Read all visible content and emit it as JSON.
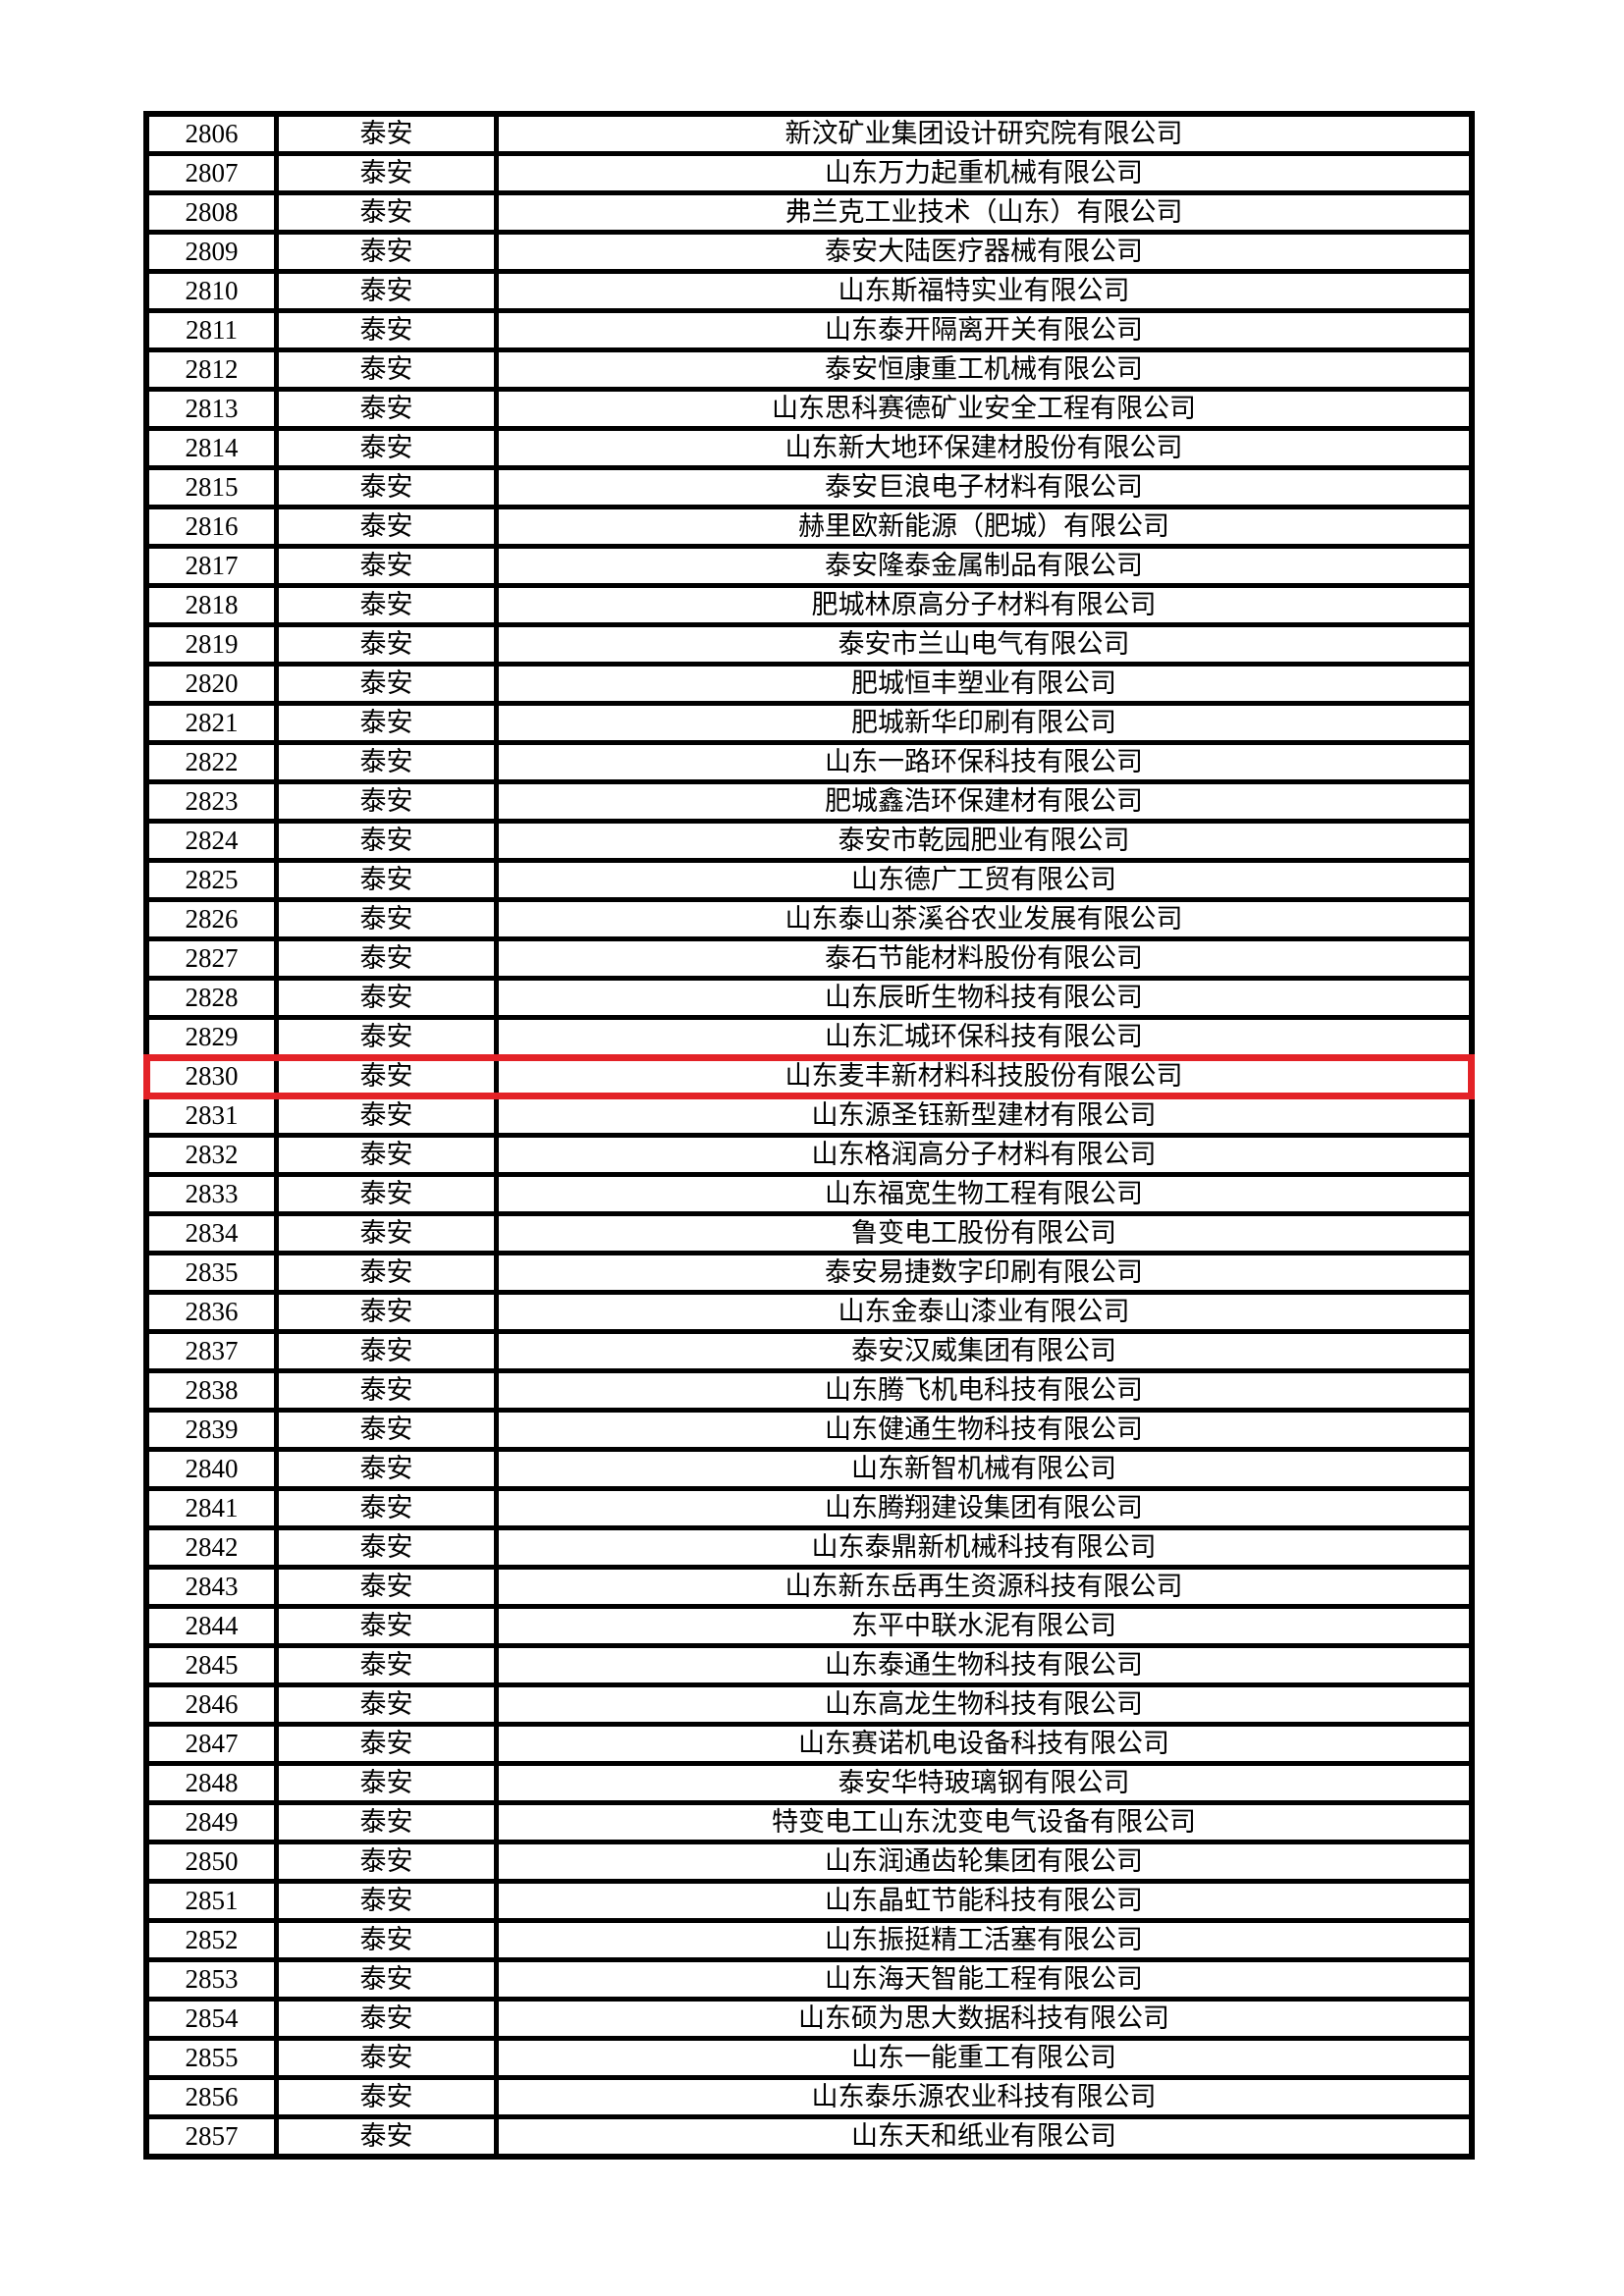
{
  "page": {
    "background_color": "#ffffff",
    "text_color": "#000000",
    "border_color": "#000000"
  },
  "table": {
    "highlight_color": "#e32227",
    "highlighted_row_number": "2830",
    "rows": [
      {
        "no": "2806",
        "city": "泰安",
        "company": "新汶矿业集团设计研究院有限公司"
      },
      {
        "no": "2807",
        "city": "泰安",
        "company": "山东万力起重机械有限公司"
      },
      {
        "no": "2808",
        "city": "泰安",
        "company": "弗兰克工业技术（山东）有限公司"
      },
      {
        "no": "2809",
        "city": "泰安",
        "company": "泰安大陆医疗器械有限公司"
      },
      {
        "no": "2810",
        "city": "泰安",
        "company": "山东斯福特实业有限公司"
      },
      {
        "no": "2811",
        "city": "泰安",
        "company": "山东泰开隔离开关有限公司"
      },
      {
        "no": "2812",
        "city": "泰安",
        "company": "泰安恒康重工机械有限公司"
      },
      {
        "no": "2813",
        "city": "泰安",
        "company": "山东思科赛德矿业安全工程有限公司"
      },
      {
        "no": "2814",
        "city": "泰安",
        "company": "山东新大地环保建材股份有限公司"
      },
      {
        "no": "2815",
        "city": "泰安",
        "company": "泰安巨浪电子材料有限公司"
      },
      {
        "no": "2816",
        "city": "泰安",
        "company": "赫里欧新能源（肥城）有限公司"
      },
      {
        "no": "2817",
        "city": "泰安",
        "company": "泰安隆泰金属制品有限公司"
      },
      {
        "no": "2818",
        "city": "泰安",
        "company": "肥城林原高分子材料有限公司"
      },
      {
        "no": "2819",
        "city": "泰安",
        "company": "泰安市兰山电气有限公司"
      },
      {
        "no": "2820",
        "city": "泰安",
        "company": "肥城恒丰塑业有限公司"
      },
      {
        "no": "2821",
        "city": "泰安",
        "company": "肥城新华印刷有限公司"
      },
      {
        "no": "2822",
        "city": "泰安",
        "company": "山东一路环保科技有限公司"
      },
      {
        "no": "2823",
        "city": "泰安",
        "company": "肥城鑫浩环保建材有限公司"
      },
      {
        "no": "2824",
        "city": "泰安",
        "company": "泰安市乾园肥业有限公司"
      },
      {
        "no": "2825",
        "city": "泰安",
        "company": "山东德广工贸有限公司"
      },
      {
        "no": "2826",
        "city": "泰安",
        "company": "山东泰山茶溪谷农业发展有限公司"
      },
      {
        "no": "2827",
        "city": "泰安",
        "company": "泰石节能材料股份有限公司"
      },
      {
        "no": "2828",
        "city": "泰安",
        "company": "山东辰昕生物科技有限公司"
      },
      {
        "no": "2829",
        "city": "泰安",
        "company": "山东汇城环保科技有限公司"
      },
      {
        "no": "2830",
        "city": "泰安",
        "company": "山东麦丰新材料科技股份有限公司"
      },
      {
        "no": "2831",
        "city": "泰安",
        "company": "山东源圣钰新型建材有限公司"
      },
      {
        "no": "2832",
        "city": "泰安",
        "company": "山东格润高分子材料有限公司"
      },
      {
        "no": "2833",
        "city": "泰安",
        "company": "山东福宽生物工程有限公司"
      },
      {
        "no": "2834",
        "city": "泰安",
        "company": "鲁变电工股份有限公司"
      },
      {
        "no": "2835",
        "city": "泰安",
        "company": "泰安易捷数字印刷有限公司"
      },
      {
        "no": "2836",
        "city": "泰安",
        "company": "山东金泰山漆业有限公司"
      },
      {
        "no": "2837",
        "city": "泰安",
        "company": "泰安汉威集团有限公司"
      },
      {
        "no": "2838",
        "city": "泰安",
        "company": "山东腾飞机电科技有限公司"
      },
      {
        "no": "2839",
        "city": "泰安",
        "company": "山东健通生物科技有限公司"
      },
      {
        "no": "2840",
        "city": "泰安",
        "company": "山东新智机械有限公司"
      },
      {
        "no": "2841",
        "city": "泰安",
        "company": "山东腾翔建设集团有限公司"
      },
      {
        "no": "2842",
        "city": "泰安",
        "company": "山东泰鼎新机械科技有限公司"
      },
      {
        "no": "2843",
        "city": "泰安",
        "company": "山东新东岳再生资源科技有限公司"
      },
      {
        "no": "2844",
        "city": "泰安",
        "company": "东平中联水泥有限公司"
      },
      {
        "no": "2845",
        "city": "泰安",
        "company": "山东泰通生物科技有限公司"
      },
      {
        "no": "2846",
        "city": "泰安",
        "company": "山东高龙生物科技有限公司"
      },
      {
        "no": "2847",
        "city": "泰安",
        "company": "山东赛诺机电设备科技有限公司"
      },
      {
        "no": "2848",
        "city": "泰安",
        "company": "泰安华特玻璃钢有限公司"
      },
      {
        "no": "2849",
        "city": "泰安",
        "company": "特变电工山东沈变电气设备有限公司"
      },
      {
        "no": "2850",
        "city": "泰安",
        "company": "山东润通齿轮集团有限公司"
      },
      {
        "no": "2851",
        "city": "泰安",
        "company": "山东晶虹节能科技有限公司"
      },
      {
        "no": "2852",
        "city": "泰安",
        "company": "山东振挺精工活塞有限公司"
      },
      {
        "no": "2853",
        "city": "泰安",
        "company": "山东海天智能工程有限公司"
      },
      {
        "no": "2854",
        "city": "泰安",
        "company": "山东硕为思大数据科技有限公司"
      },
      {
        "no": "2855",
        "city": "泰安",
        "company": "山东一能重工有限公司"
      },
      {
        "no": "2856",
        "city": "泰安",
        "company": "山东泰乐源农业科技有限公司"
      },
      {
        "no": "2857",
        "city": "泰安",
        "company": "山东天和纸业有限公司"
      }
    ]
  }
}
